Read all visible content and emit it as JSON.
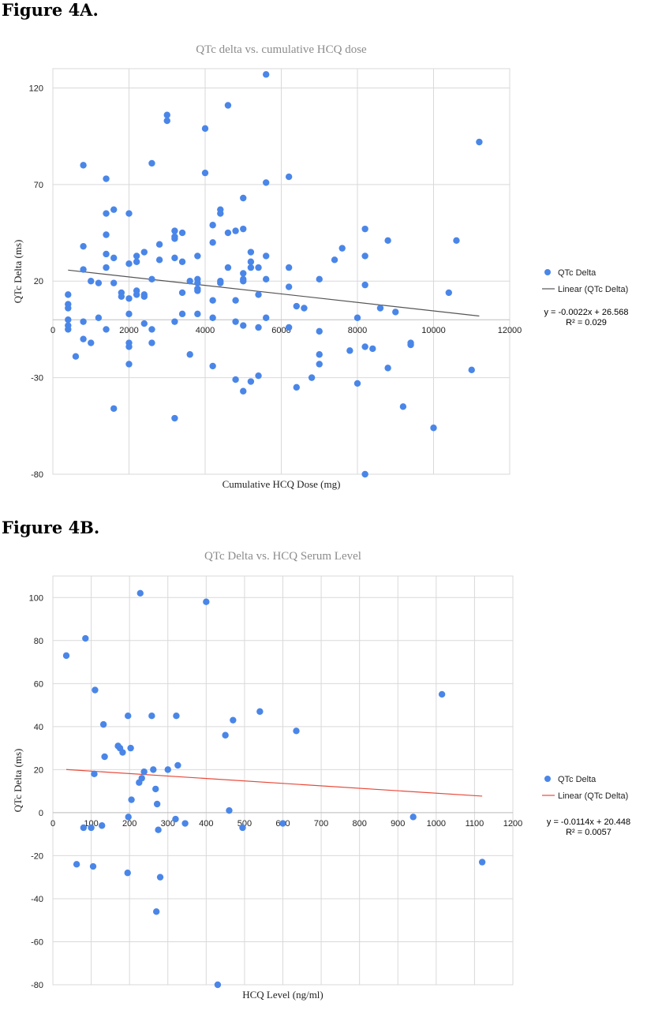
{
  "figures": [
    {
      "heading": "Figure 4A."
    },
    {
      "heading": "Figure 4B."
    }
  ],
  "chart_data": [
    {
      "type": "scatter",
      "title": "QTc delta vs. cumulative HCQ dose",
      "xlabel": "Cumulative HCQ Dose (mg)",
      "ylabel": "QTc Delta (ms)",
      "xlim": [
        0,
        12000
      ],
      "ylim": [
        -80,
        130
      ],
      "x_ticks": [
        0,
        2000,
        4000,
        6000,
        8000,
        10000,
        12000
      ],
      "x_tick_labels": [
        "0",
        "2000",
        "4000",
        "6000",
        "8000",
        "10000",
        "12000"
      ],
      "y_ticks": [
        -80,
        -30,
        20,
        70,
        120
      ],
      "y_tick_labels": [
        "-80",
        "-30",
        "20",
        "70",
        "120"
      ],
      "grid": true,
      "point_color": "#4a86e8",
      "trendline_color": "#555555",
      "legend_position": "right",
      "legend": [
        "QTc Delta",
        "Linear (QTc Delta)"
      ],
      "equation": "y = -0.0022x + 26.568",
      "r_squared": "R² = 0.029",
      "trendline": {
        "slope": -0.0022,
        "intercept": 26.568,
        "x_range": [
          400,
          11200
        ]
      },
      "series": [
        {
          "name": "QTc Delta",
          "points": [
            [
              400,
              13
            ],
            [
              400,
              8
            ],
            [
              400,
              6
            ],
            [
              400,
              0
            ],
            [
              400,
              -5
            ],
            [
              400,
              -3
            ],
            [
              600,
              -19
            ],
            [
              800,
              80
            ],
            [
              800,
              38
            ],
            [
              800,
              26
            ],
            [
              800,
              -1
            ],
            [
              800,
              -10
            ],
            [
              1000,
              20
            ],
            [
              1000,
              -12
            ],
            [
              1200,
              19
            ],
            [
              1200,
              1
            ],
            [
              1400,
              73
            ],
            [
              1400,
              55
            ],
            [
              1400,
              44
            ],
            [
              1400,
              34
            ],
            [
              1400,
              27
            ],
            [
              1400,
              -5
            ],
            [
              1600,
              57
            ],
            [
              1600,
              32
            ],
            [
              1600,
              19
            ],
            [
              1600,
              -46
            ],
            [
              1800,
              14
            ],
            [
              1800,
              12
            ],
            [
              2000,
              55
            ],
            [
              2000,
              29
            ],
            [
              2000,
              11
            ],
            [
              2000,
              3
            ],
            [
              2000,
              -12
            ],
            [
              2000,
              -14
            ],
            [
              2000,
              -23
            ],
            [
              2200,
              33
            ],
            [
              2200,
              30
            ],
            [
              2200,
              15
            ],
            [
              2200,
              13
            ],
            [
              2400,
              35
            ],
            [
              2400,
              13
            ],
            [
              2400,
              12
            ],
            [
              2400,
              -2
            ],
            [
              2600,
              81
            ],
            [
              2600,
              21
            ],
            [
              2600,
              -5
            ],
            [
              2600,
              -12
            ],
            [
              2800,
              39
            ],
            [
              2800,
              31
            ],
            [
              3000,
              106
            ],
            [
              3000,
              103
            ],
            [
              3200,
              46
            ],
            [
              3200,
              43
            ],
            [
              3200,
              42
            ],
            [
              3200,
              32
            ],
            [
              3200,
              -1
            ],
            [
              3200,
              -51
            ],
            [
              3400,
              45
            ],
            [
              3400,
              30
            ],
            [
              3400,
              14
            ],
            [
              3400,
              3
            ],
            [
              3600,
              20
            ],
            [
              3600,
              -18
            ],
            [
              3800,
              33
            ],
            [
              3800,
              21
            ],
            [
              3800,
              19
            ],
            [
              3800,
              16
            ],
            [
              3800,
              15
            ],
            [
              3800,
              3
            ],
            [
              4000,
              99
            ],
            [
              4000,
              76
            ],
            [
              4200,
              49
            ],
            [
              4200,
              40
            ],
            [
              4200,
              10
            ],
            [
              4200,
              1
            ],
            [
              4200,
              -24
            ],
            [
              4400,
              57
            ],
            [
              4400,
              55
            ],
            [
              4400,
              20
            ],
            [
              4400,
              19
            ],
            [
              4600,
              111
            ],
            [
              4600,
              45
            ],
            [
              4600,
              27
            ],
            [
              4800,
              46
            ],
            [
              4800,
              10
            ],
            [
              4800,
              -1
            ],
            [
              4800,
              -31
            ],
            [
              5000,
              63
            ],
            [
              5000,
              47
            ],
            [
              5000,
              24
            ],
            [
              5000,
              21
            ],
            [
              5000,
              20
            ],
            [
              5000,
              -3
            ],
            [
              5000,
              -37
            ],
            [
              5200,
              35
            ],
            [
              5200,
              30
            ],
            [
              5200,
              27
            ],
            [
              5200,
              -32
            ],
            [
              5400,
              27
            ],
            [
              5400,
              13
            ],
            [
              5400,
              -4
            ],
            [
              5400,
              -29
            ],
            [
              5600,
              127
            ],
            [
              5600,
              71
            ],
            [
              5600,
              33
            ],
            [
              5600,
              21
            ],
            [
              5600,
              1
            ],
            [
              6200,
              74
            ],
            [
              6200,
              27
            ],
            [
              6200,
              17
            ],
            [
              6200,
              -4
            ],
            [
              6400,
              7
            ],
            [
              6400,
              -35
            ],
            [
              6600,
              6
            ],
            [
              6800,
              -30
            ],
            [
              7000,
              21
            ],
            [
              7000,
              -6
            ],
            [
              7000,
              -18
            ],
            [
              7000,
              -23
            ],
            [
              7400,
              31
            ],
            [
              7600,
              37
            ],
            [
              7800,
              -16
            ],
            [
              8000,
              1
            ],
            [
              8000,
              -33
            ],
            [
              8200,
              47
            ],
            [
              8200,
              33
            ],
            [
              8200,
              18
            ],
            [
              8200,
              -14
            ],
            [
              8200,
              -80
            ],
            [
              8400,
              -15
            ],
            [
              8600,
              6
            ],
            [
              8800,
              41
            ],
            [
              8800,
              -25
            ],
            [
              9000,
              4
            ],
            [
              9200,
              -45
            ],
            [
              9400,
              -12
            ],
            [
              9400,
              -13
            ],
            [
              10000,
              -56
            ],
            [
              10400,
              14
            ],
            [
              10600,
              41
            ],
            [
              11000,
              -26
            ],
            [
              11200,
              92
            ]
          ]
        }
      ]
    },
    {
      "type": "scatter",
      "title": "QTc Delta vs. HCQ Serum Level",
      "xlabel": "HCQ Level (ng/ml)",
      "ylabel": "QTc Delta (ms)",
      "xlim": [
        0,
        1200
      ],
      "ylim": [
        -80,
        110
      ],
      "x_ticks": [
        0,
        100,
        200,
        300,
        400,
        500,
        600,
        700,
        800,
        900,
        1000,
        1100,
        1200
      ],
      "x_tick_labels": [
        "0",
        "100",
        "200",
        "300",
        "400",
        "500",
        "600",
        "700",
        "800",
        "900",
        "1000",
        "1100",
        "1200"
      ],
      "y_ticks": [
        -80,
        -60,
        -40,
        -20,
        0,
        20,
        40,
        60,
        80,
        100
      ],
      "y_tick_labels": [
        "-80",
        "-60",
        "-40",
        "-20",
        "0",
        "20",
        "40",
        "60",
        "80",
        "100"
      ],
      "grid": true,
      "point_color": "#4a86e8",
      "trendline_color": "#e8493a",
      "legend_position": "right",
      "legend": [
        "QTc Delta",
        "Linear (QTc Delta)"
      ],
      "equation": "y = -0.0114x + 20.448",
      "r_squared": "R² = 0.0057",
      "trendline": {
        "slope": -0.0114,
        "intercept": 20.448,
        "x_range": [
          35,
          1120
        ]
      },
      "series": [
        {
          "name": "QTc Delta",
          "points": [
            [
              35,
              73
            ],
            [
              62,
              -24
            ],
            [
              80,
              -7
            ],
            [
              85,
              81
            ],
            [
              100,
              -7
            ],
            [
              105,
              -25
            ],
            [
              108,
              18
            ],
            [
              110,
              57
            ],
            [
              128,
              -6
            ],
            [
              132,
              41
            ],
            [
              135,
              26
            ],
            [
              170,
              31
            ],
            [
              175,
              30
            ],
            [
              182,
              28
            ],
            [
              195,
              -28
            ],
            [
              196,
              45
            ],
            [
              197,
              -2
            ],
            [
              203,
              30
            ],
            [
              205,
              6
            ],
            [
              225,
              14
            ],
            [
              228,
              102
            ],
            [
              232,
              16
            ],
            [
              238,
              19
            ],
            [
              258,
              45
            ],
            [
              262,
              20
            ],
            [
              268,
              11
            ],
            [
              270,
              -46
            ],
            [
              272,
              4
            ],
            [
              275,
              -8
            ],
            [
              280,
              -30
            ],
            [
              300,
              20
            ],
            [
              320,
              -3
            ],
            [
              322,
              45
            ],
            [
              326,
              22
            ],
            [
              345,
              -5
            ],
            [
              400,
              98
            ],
            [
              430,
              -80
            ],
            [
              450,
              36
            ],
            [
              460,
              1
            ],
            [
              470,
              43
            ],
            [
              495,
              -7
            ],
            [
              540,
              47
            ],
            [
              600,
              -5
            ],
            [
              635,
              38
            ],
            [
              940,
              -2
            ],
            [
              1015,
              55
            ],
            [
              1120,
              -23
            ]
          ]
        }
      ]
    }
  ]
}
